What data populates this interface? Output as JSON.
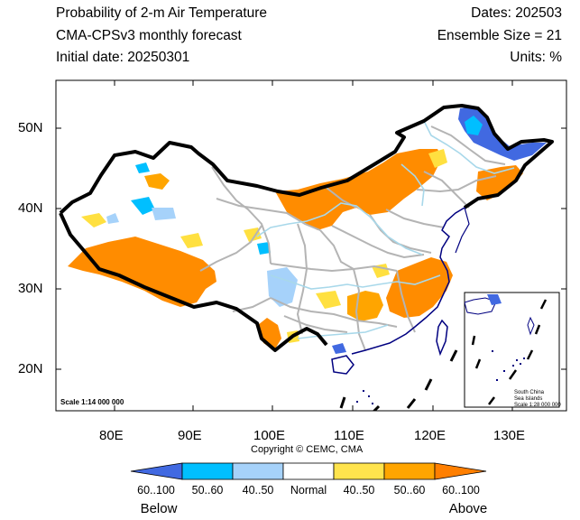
{
  "header": {
    "title": "Probability of 2-m Air Temperature",
    "model": "CMA-CPSv3 monthly forecast",
    "initial": "Initial date: 20250301",
    "dates": "Dates: 202503",
    "ensemble": "Ensemble Size = 21",
    "units": "Units: %"
  },
  "map": {
    "lon_labels": [
      "80E",
      "90E",
      "100E",
      "110E",
      "120E",
      "130E"
    ],
    "lat_labels": [
      "50N",
      "40N",
      "30N",
      "20N"
    ],
    "scale_text": "Scale 1:14 000 000",
    "copyright": "Copyright © CEMC, CMA",
    "inset": {
      "line1": "South China",
      "line2": "Sea Islands",
      "line3": "Scale 1:28 000 000"
    }
  },
  "colorbar": {
    "labels": [
      "60..100",
      "50..60",
      "40..50",
      "Normal",
      "40..50",
      "50..60",
      "60..100"
    ],
    "below": "Below",
    "above": "Above",
    "colors": [
      "#4169e1",
      "#00bfff",
      "#a6d2fa",
      "#ffffff",
      "#ffe44d",
      "#ffa500",
      "#ff7f00"
    ]
  },
  "colors": {
    "above_strong": "#ff8c00",
    "above_mid": "#ffa500",
    "above_weak": "#ffe040",
    "below_strong": "#4169e1",
    "below_mid": "#00bfff",
    "below_weak": "#a6d2fa",
    "province_lines": "#b4b4b4",
    "rivers": "#a8d8ea",
    "coast": "#000080"
  }
}
